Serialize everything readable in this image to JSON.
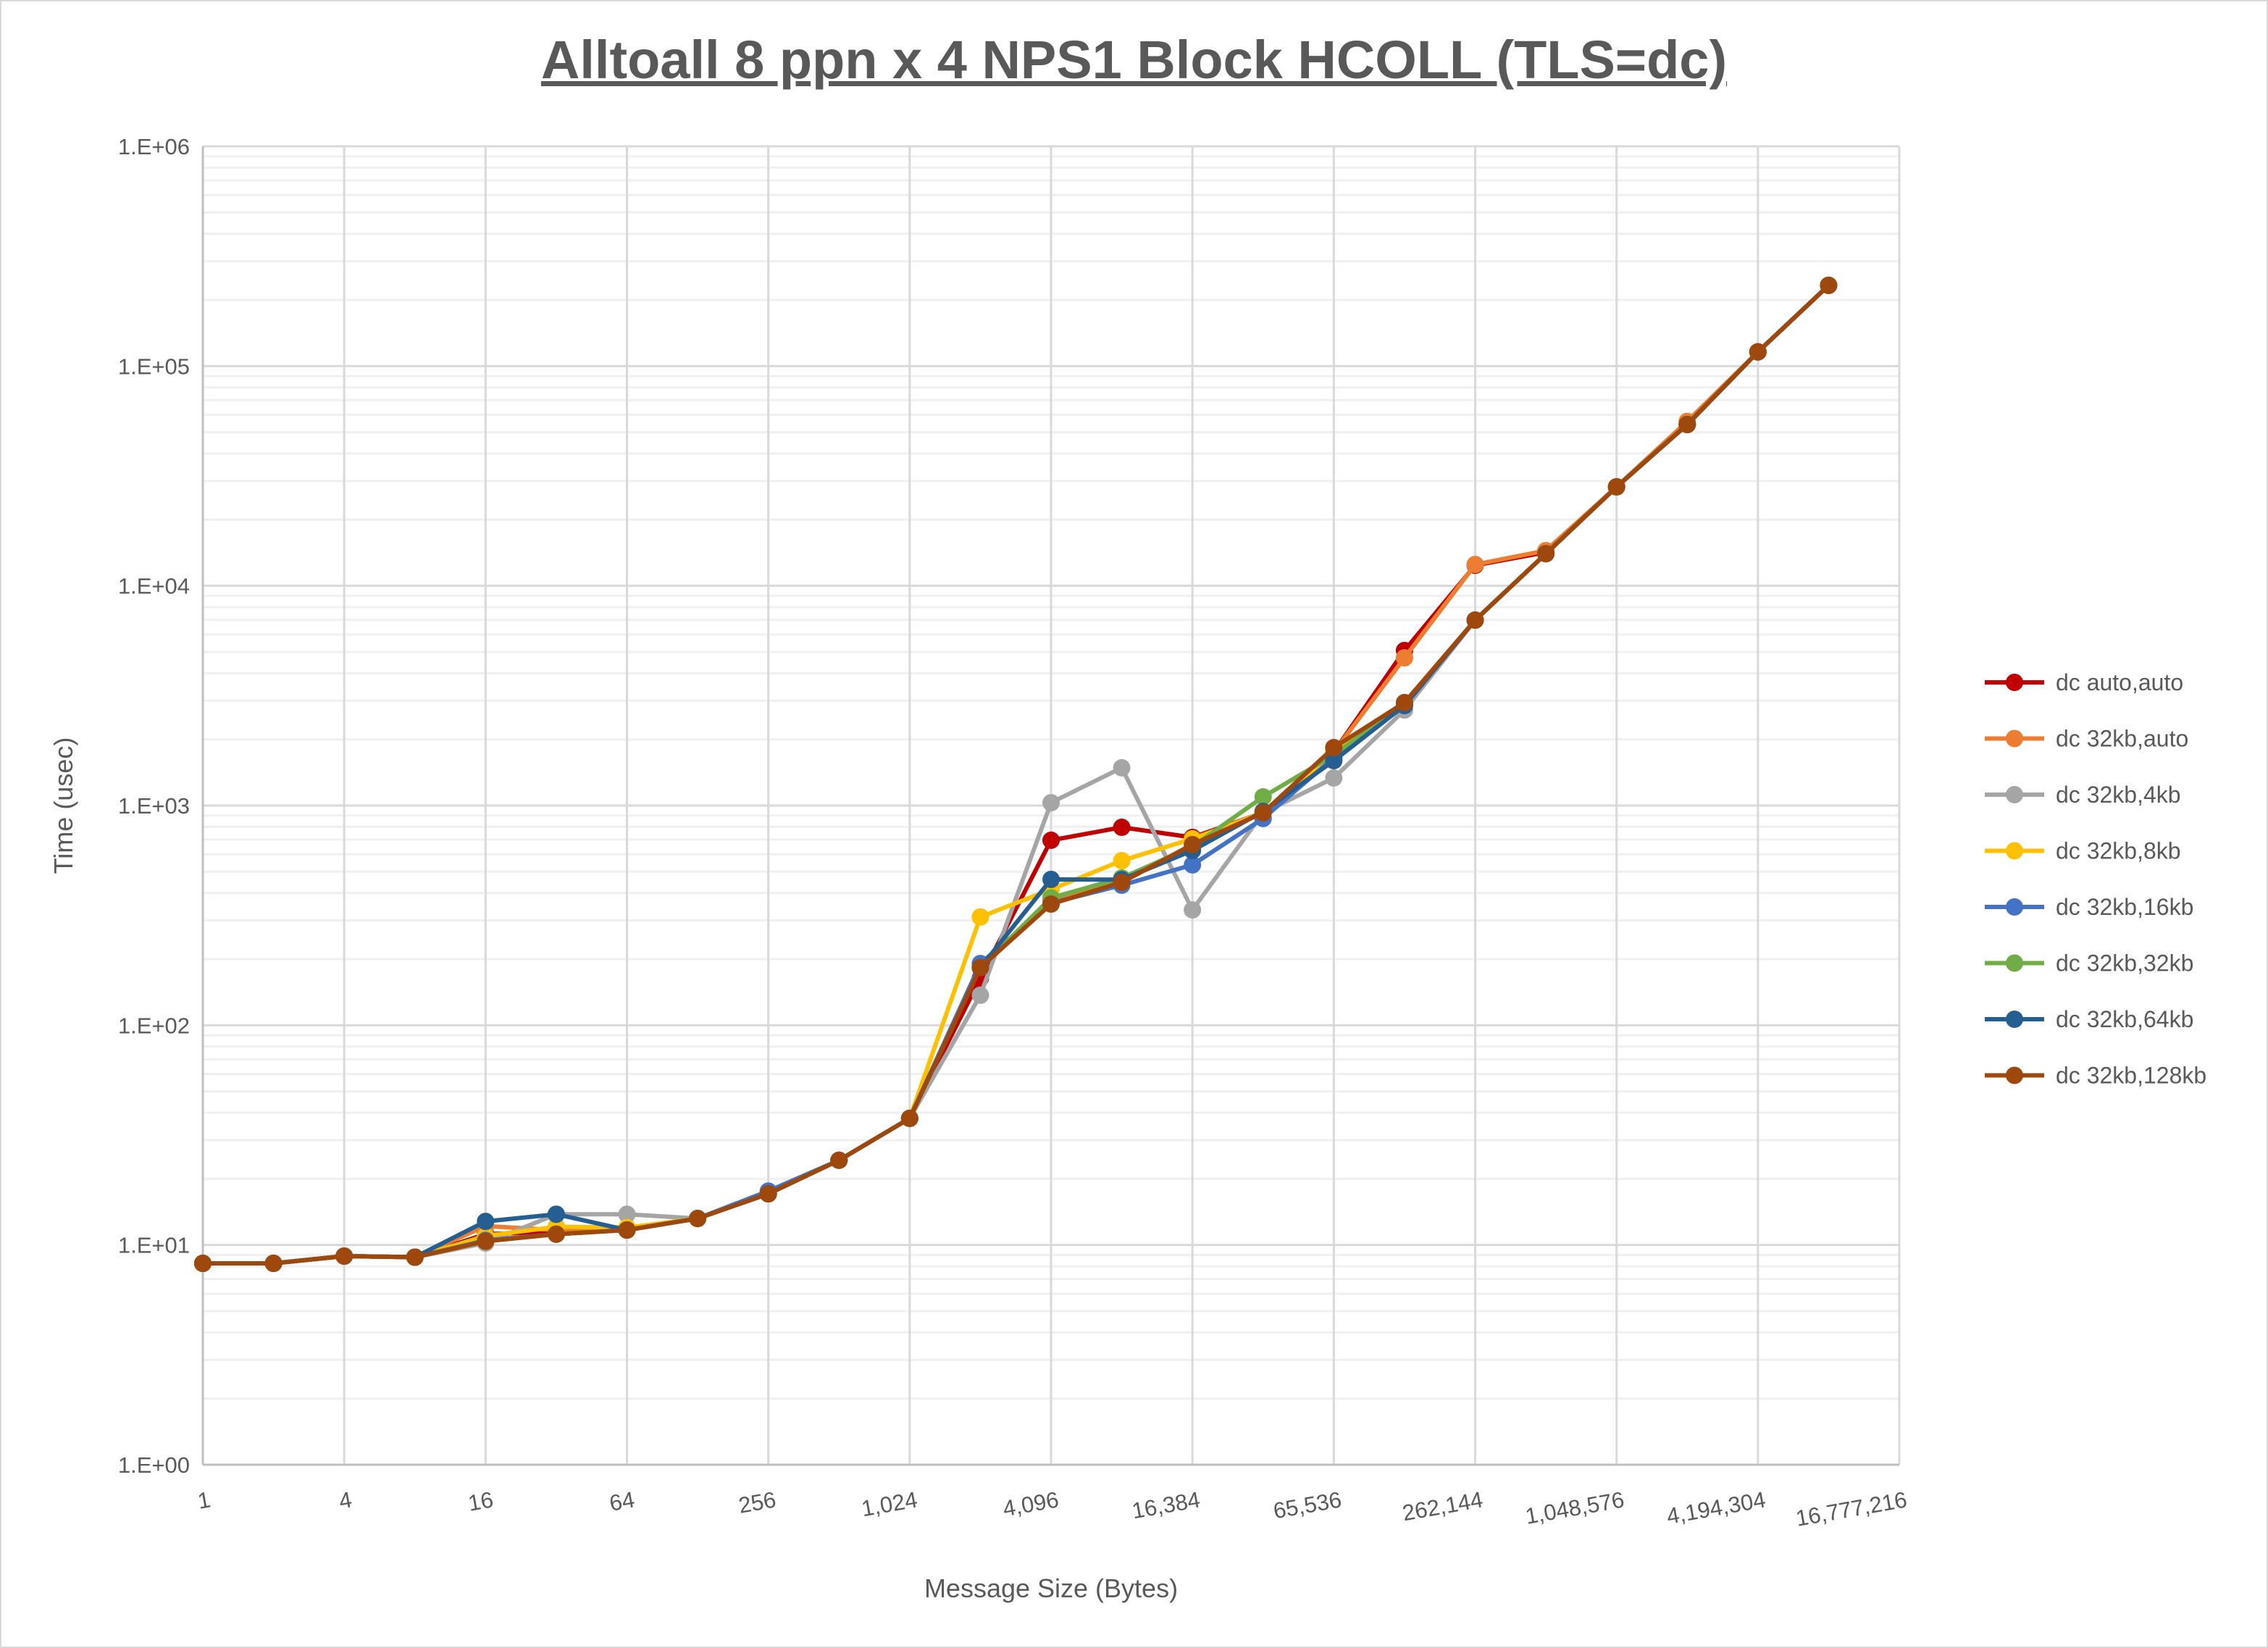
{
  "chart_data": {
    "type": "line",
    "title": "Alltoall 8 ppn x 4 NPS1 Block HCOLL (TLS=dc)",
    "xlabel": "Message Size (Bytes)",
    "ylabel": "Time (usec)",
    "x_scale": "log2",
    "y_scale": "log10",
    "xlim": [
      1,
      16777216
    ],
    "ylim": [
      1,
      1000000
    ],
    "grid": true,
    "legend": "right",
    "x_tick_labels": [
      "1",
      "4",
      "16",
      "64",
      "256",
      "1,024",
      "4,096",
      "16,384",
      "65,536",
      "262,144",
      "1,048,576",
      "4,194,304",
      "16,777,216"
    ],
    "y_tick_labels": [
      "1.E+00",
      "1.E+01",
      "1.E+02",
      "1.E+03",
      "1.E+04",
      "1.E+05",
      "1.E+06"
    ],
    "x": [
      1,
      2,
      4,
      8,
      16,
      32,
      64,
      128,
      256,
      512,
      1024,
      2048,
      4096,
      8192,
      16384,
      32768,
      65536,
      131072,
      262144,
      524288,
      1048576,
      2097152,
      4194304,
      8388608
    ],
    "series": [
      {
        "name": "dc auto,auto",
        "color": "#C00000",
        "values": [
          8.25,
          8.25,
          8.9,
          8.8,
          11.2,
          11.5,
          11.7,
          13.2,
          17.1,
          24.3,
          37.7,
          164,
          695,
          796,
          716,
          927,
          1750,
          5075,
          12400,
          14200,
          28200,
          54200,
          116000,
          233000
        ]
      },
      {
        "name": "dc 32kb,auto",
        "color": "#ED7D31",
        "values": [
          8.25,
          8.25,
          8.9,
          8.8,
          12.2,
          11.7,
          11.7,
          13.2,
          17.1,
          24.3,
          37.7,
          183,
          370,
          450,
          664,
          927,
          1750,
          4700,
          12500,
          14460,
          28200,
          56000,
          116000,
          233000
        ]
      },
      {
        "name": "dc 32kb,4kb",
        "color": "#A5A5A5",
        "values": [
          8.25,
          8.25,
          8.9,
          8.8,
          10.2,
          13.8,
          13.8,
          13.2,
          17.1,
          24.3,
          37.7,
          137,
          1030,
          1485,
          335,
          927,
          1335,
          2720,
          6980,
          14000,
          28200,
          54200,
          116000,
          233000
        ]
      },
      {
        "name": "dc 32kb,8kb",
        "color": "#FFC000",
        "values": [
          8.25,
          8.25,
          8.9,
          8.8,
          11.0,
          12.1,
          12.0,
          13.2,
          17.1,
          24.3,
          37.7,
          311,
          415,
          561,
          706,
          927,
          1750,
          2940,
          6980,
          14000,
          28200,
          54200,
          116000,
          233000
        ]
      },
      {
        "name": "dc 32kb,16kb",
        "color": "#4472C4",
        "values": [
          8.25,
          8.25,
          8.9,
          8.8,
          10.5,
          11.2,
          11.7,
          13.2,
          17.6,
          24.3,
          37.7,
          191,
          360,
          434,
          537,
          873,
          1650,
          2900,
          6980,
          14000,
          28200,
          54200,
          116000,
          233000
        ]
      },
      {
        "name": "dc 32kb,32kb",
        "color": "#70AD47",
        "values": [
          8.25,
          8.25,
          8.9,
          8.8,
          10.4,
          11.2,
          11.7,
          13.2,
          17.1,
          24.3,
          37.7,
          183,
          380,
          468,
          650,
          1095,
          1700,
          2900,
          6980,
          14000,
          28200,
          54200,
          116000,
          233000
        ]
      },
      {
        "name": "dc 32kb,64kb",
        "color": "#255E91",
        "values": [
          8.25,
          8.25,
          8.9,
          8.8,
          12.8,
          13.8,
          11.7,
          13.2,
          17.1,
          24.3,
          37.7,
          183,
          461,
          460,
          624,
          940,
          1600,
          2850,
          6980,
          14000,
          28200,
          54200,
          116000,
          233000
        ]
      },
      {
        "name": "dc 32kb,128kb",
        "color": "#9E480E",
        "values": [
          8.25,
          8.25,
          8.9,
          8.8,
          10.4,
          11.2,
          11.7,
          13.2,
          17.1,
          24.3,
          37.7,
          183,
          356,
          447,
          664,
          927,
          1835,
          2940,
          6980,
          14000,
          28200,
          54200,
          116000,
          233000
        ]
      }
    ]
  }
}
